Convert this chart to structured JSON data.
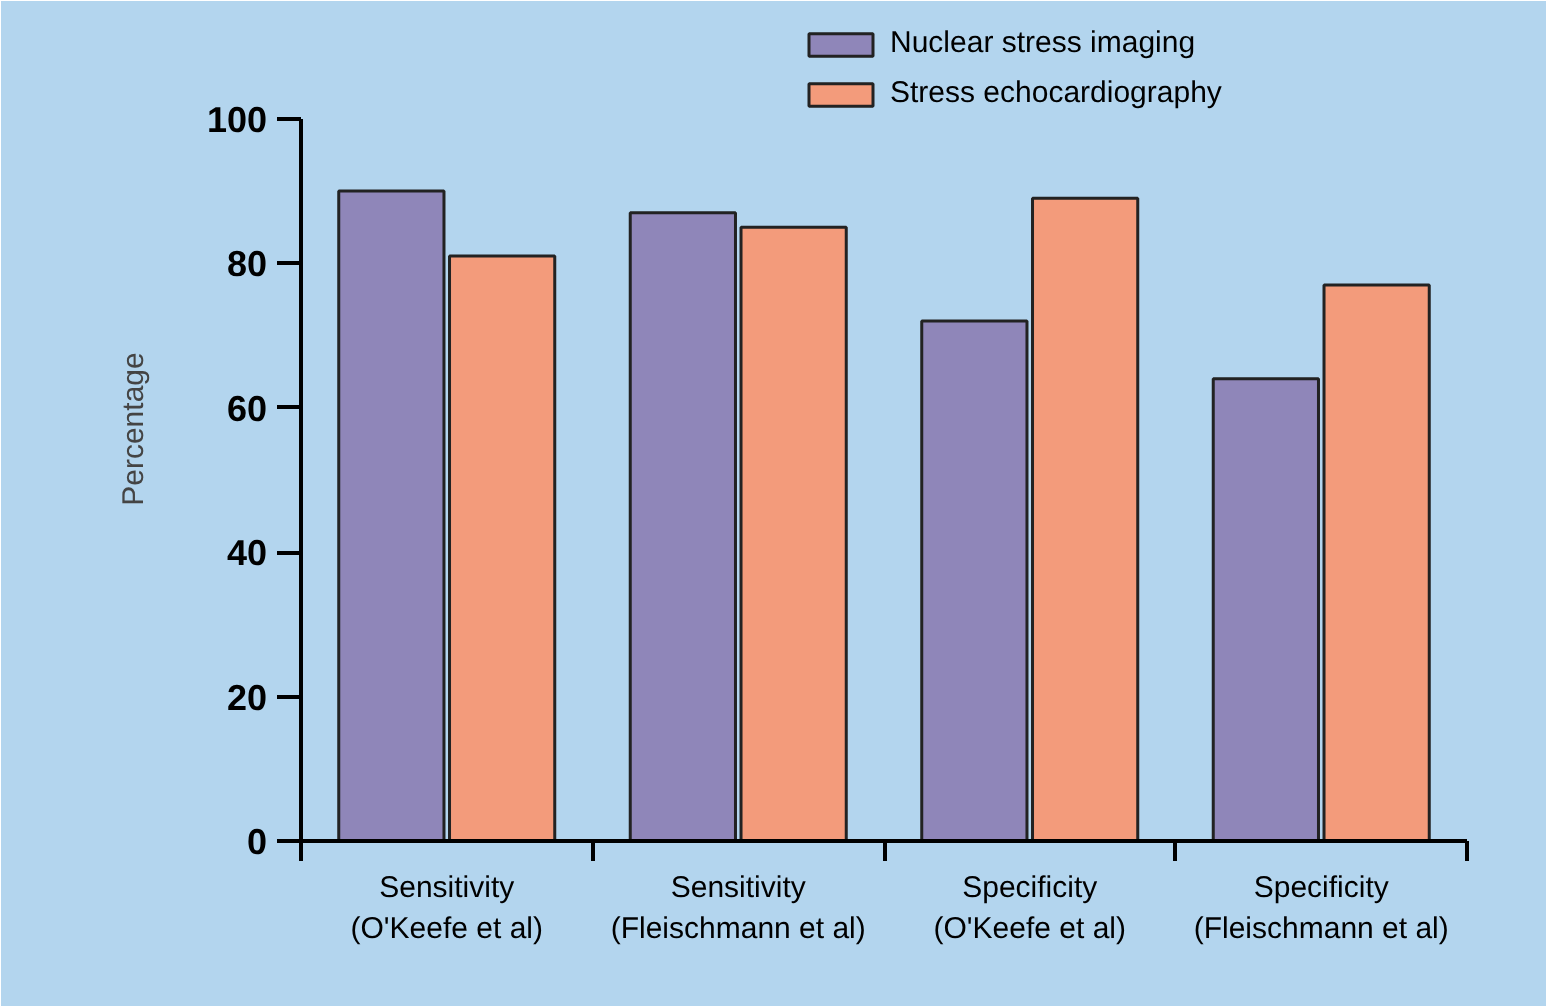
{
  "chart_data": {
    "type": "bar",
    "ylabel": "Percentage",
    "categories": [
      "Sensitivity\n(O'Keefe et al)",
      "Sensitivity\n(Fleischmann et al)",
      "Specificity\n(O'Keefe et al)",
      "Specificity\n(Fleischmann et al)"
    ],
    "series": [
      {
        "name": "Nuclear stress imaging",
        "color": "#8f86b9",
        "values": [
          90,
          87,
          72,
          64
        ]
      },
      {
        "name": "Stress echocardiography",
        "color": "#f39b7b",
        "values": [
          81,
          85,
          89,
          77
        ]
      }
    ],
    "ylim": [
      0,
      100
    ],
    "yticks": [
      0,
      20,
      40,
      60,
      80,
      100
    ],
    "grid": false,
    "legend": "top right"
  }
}
